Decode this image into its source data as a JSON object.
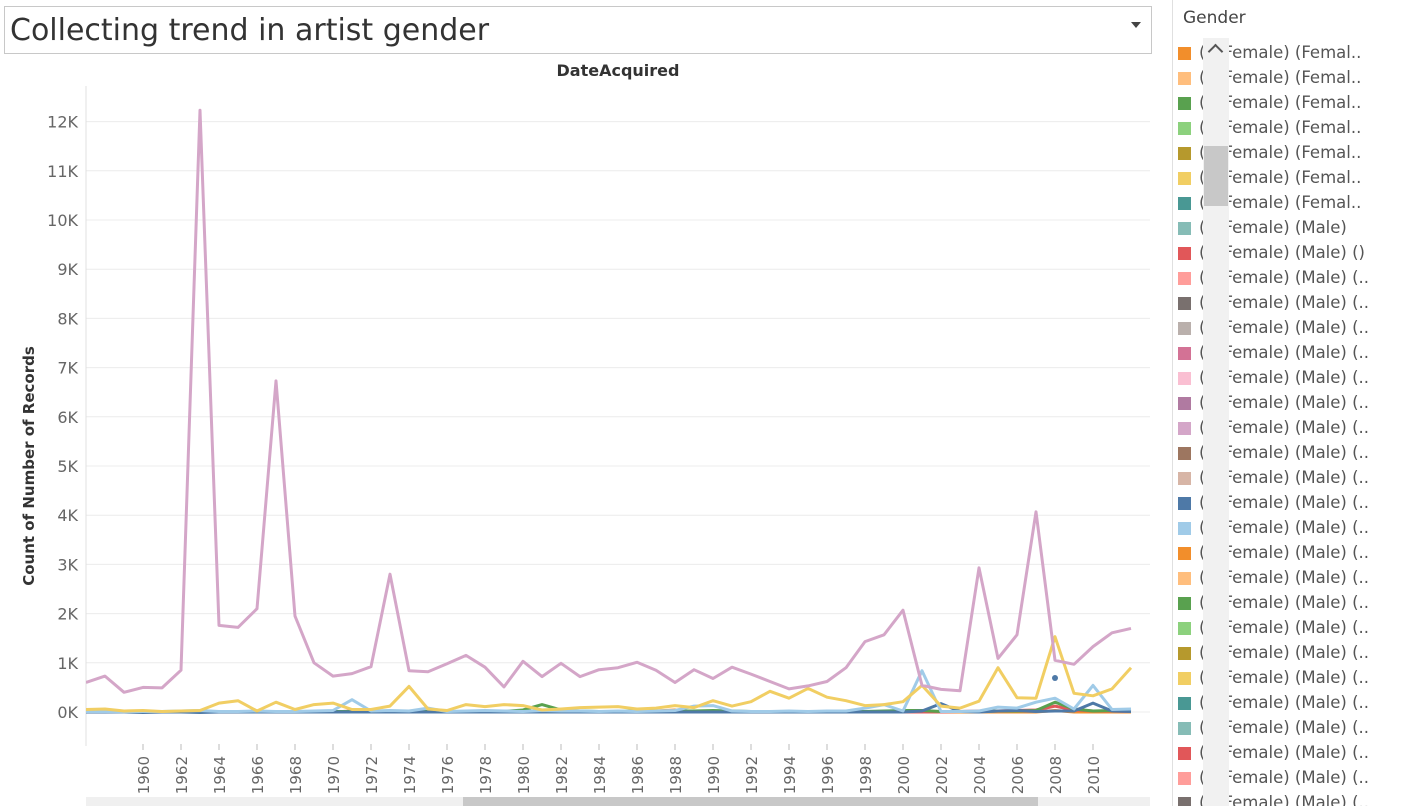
{
  "header": {
    "title": "Collecting trend in artist gender"
  },
  "legend": {
    "title": "Gender",
    "items": [
      {
        "label": "() (Female) (Femal..",
        "color": "#f28e2b"
      },
      {
        "label": "() (Female) (Femal..",
        "color": "#ffbe7d"
      },
      {
        "label": "() (Female) (Femal..",
        "color": "#59a14f"
      },
      {
        "label": "() (Female) (Femal..",
        "color": "#8cd17d"
      },
      {
        "label": "() (Female) (Femal..",
        "color": "#b6992d"
      },
      {
        "label": "() (Female) (Femal..",
        "color": "#f1ce63"
      },
      {
        "label": "() (Female) (Femal..",
        "color": "#499894"
      },
      {
        "label": "() (Female) (Male)",
        "color": "#86bcb6"
      },
      {
        "label": "() (Female) (Male) ()",
        "color": "#e15759"
      },
      {
        "label": "() (Female) (Male) (..",
        "color": "#ff9d9a"
      },
      {
        "label": "() (Female) (Male) (..",
        "color": "#79706e"
      },
      {
        "label": "() (Female) (Male) (..",
        "color": "#bab0ac"
      },
      {
        "label": "() (Female) (Male) (..",
        "color": "#d37295"
      },
      {
        "label": "() (Female) (Male) (..",
        "color": "#fabfd2"
      },
      {
        "label": "() (Female) (Male) (..",
        "color": "#b07aa1"
      },
      {
        "label": "() (Female) (Male) (..",
        "color": "#d4a6c8"
      },
      {
        "label": "() (Female) (Male) (..",
        "color": "#9d7660"
      },
      {
        "label": "() (Female) (Male) (..",
        "color": "#d7b5a6"
      },
      {
        "label": "() (Female) (Male) (..",
        "color": "#4e79a7"
      },
      {
        "label": "() (Female) (Male) (..",
        "color": "#a0cbe8"
      },
      {
        "label": "() (Female) (Male) (..",
        "color": "#f28e2b"
      },
      {
        "label": "() (Female) (Male) (..",
        "color": "#ffbe7d"
      },
      {
        "label": "() (Female) (Male) (..",
        "color": "#59a14f"
      },
      {
        "label": "() (Female) (Male) (..",
        "color": "#8cd17d"
      },
      {
        "label": "() (Female) (Male) (..",
        "color": "#b6992d"
      },
      {
        "label": "() (Female) (Male) (..",
        "color": "#f1ce63"
      },
      {
        "label": "() (Female) (Male) (..",
        "color": "#499894"
      },
      {
        "label": "() (Female) (Male) (..",
        "color": "#86bcb6"
      },
      {
        "label": "() (Female) (Male) (..",
        "color": "#e15759"
      },
      {
        "label": "() (Female) (Male) (..",
        "color": "#ff9d9a"
      },
      {
        "label": "() (Female) (Male) (..",
        "color": "#79706e"
      }
    ]
  },
  "chart_data": {
    "type": "line",
    "title": "DateAcquired",
    "xlabel": "",
    "ylabel": "Count of Number of Records",
    "ylim": [
      0,
      12500
    ],
    "xlim": [
      1957,
      2013
    ],
    "x_ticks": [
      1960,
      1962,
      1964,
      1966,
      1968,
      1970,
      1972,
      1974,
      1976,
      1978,
      1980,
      1982,
      1984,
      1986,
      1988,
      1990,
      1992,
      1994,
      1996,
      1998,
      2000,
      2002,
      2004,
      2006,
      2008,
      2010
    ],
    "y_ticks": [
      {
        "value": 0,
        "label": "0K"
      },
      {
        "value": 1000,
        "label": "1K"
      },
      {
        "value": 2000,
        "label": "2K"
      },
      {
        "value": 3000,
        "label": "3K"
      },
      {
        "value": 4000,
        "label": "4K"
      },
      {
        "value": 5000,
        "label": "5K"
      },
      {
        "value": 6000,
        "label": "6K"
      },
      {
        "value": 7000,
        "label": "7K"
      },
      {
        "value": 8000,
        "label": "8K"
      },
      {
        "value": 9000,
        "label": "9K"
      },
      {
        "value": 10000,
        "label": "10K"
      },
      {
        "value": 11000,
        "label": "11K"
      },
      {
        "value": 12000,
        "label": "12K"
      }
    ],
    "grid": true,
    "legend_position": "right",
    "series": [
      {
        "color": "#d4a6c8",
        "x": [
          1957,
          1958,
          1959,
          1960,
          1961,
          1962,
          1963,
          1964,
          1965,
          1966,
          1967,
          1968,
          1969,
          1970,
          1971,
          1972,
          1973,
          1974,
          1975,
          1976,
          1977,
          1978,
          1979,
          1980,
          1981,
          1982,
          1983,
          1984,
          1985,
          1986,
          1987,
          1988,
          1989,
          1990,
          1991,
          1992,
          1993,
          1994,
          1995,
          1996,
          1997,
          1998,
          1999,
          2000,
          2001,
          2002,
          2003,
          2004,
          2005,
          2006,
          2007,
          2008,
          2009,
          2010,
          2011,
          2012
        ],
        "values": [
          600,
          730,
          400,
          500,
          490,
          850,
          12230,
          1760,
          1720,
          2100,
          6730,
          1950,
          1000,
          730,
          780,
          920,
          2800,
          840,
          820,
          980,
          1150,
          910,
          510,
          1030,
          720,
          990,
          720,
          860,
          900,
          1010,
          850,
          600,
          860,
          680,
          910,
          770,
          620,
          470,
          530,
          620,
          900,
          1430,
          1570,
          2070,
          540,
          460,
          430,
          2930,
          1090,
          1570,
          4070,
          1050,
          970,
          1330,
          1610,
          1700
        ]
      },
      {
        "color": "#f1ce63",
        "x": [
          1957,
          1958,
          1959,
          1960,
          1961,
          1962,
          1963,
          1964,
          1965,
          1966,
          1967,
          1968,
          1969,
          1970,
          1971,
          1972,
          1973,
          1974,
          1975,
          1976,
          1977,
          1978,
          1979,
          1980,
          1981,
          1982,
          1983,
          1984,
          1985,
          1986,
          1987,
          1988,
          1989,
          1990,
          1991,
          1992,
          1993,
          1994,
          1995,
          1996,
          1997,
          1998,
          1999,
          2000,
          2001,
          2002,
          2003,
          2004,
          2005,
          2006,
          2007,
          2008,
          2009,
          2010,
          2011,
          2012
        ],
        "values": [
          50,
          60,
          20,
          30,
          10,
          20,
          30,
          180,
          230,
          20,
          200,
          50,
          150,
          180,
          50,
          50,
          120,
          520,
          60,
          30,
          150,
          110,
          150,
          130,
          40,
          60,
          90,
          100,
          110,
          60,
          80,
          130,
          90,
          230,
          120,
          210,
          420,
          280,
          480,
          300,
          230,
          130,
          150,
          210,
          540,
          120,
          80,
          220,
          900,
          290,
          280,
          1530,
          380,
          330,
          470,
          900
        ]
      },
      {
        "color": "#a0cbe8",
        "x": [
          1957,
          1958,
          1959,
          1960,
          1961,
          1962,
          1963,
          1964,
          1965,
          1966,
          1967,
          1968,
          1969,
          1970,
          1971,
          1972,
          1973,
          1974,
          1975,
          1976,
          1977,
          1978,
          1979,
          1980,
          1981,
          1982,
          1983,
          1984,
          1985,
          1986,
          1987,
          1988,
          1989,
          1990,
          1991,
          1992,
          1993,
          1994,
          1995,
          1996,
          1997,
          1998,
          1999,
          2000,
          2001,
          2002,
          2003,
          2004,
          2005,
          2006,
          2007,
          2008,
          2009,
          2010,
          2011,
          2012
        ],
        "values": [
          10,
          10,
          5,
          10,
          10,
          20,
          30,
          10,
          10,
          20,
          10,
          10,
          20,
          30,
          250,
          20,
          30,
          20,
          80,
          10,
          20,
          30,
          20,
          10,
          30,
          20,
          20,
          10,
          20,
          10,
          20,
          30,
          120,
          130,
          20,
          10,
          10,
          20,
          10,
          20,
          20,
          80,
          150,
          20,
          840,
          10,
          10,
          20,
          100,
          80,
          200,
          280,
          60,
          540,
          50,
          60
        ]
      },
      {
        "color": "#4e79a7",
        "x": [
          1957,
          1958,
          1959,
          1960,
          1961,
          1962,
          1963,
          1964,
          1965,
          1966,
          1967,
          1968,
          1969,
          1970,
          1971,
          1972,
          1973,
          1974,
          1975,
          1976,
          1977,
          1978,
          1979,
          1980,
          1981,
          1982,
          1983,
          1984,
          1985,
          1986,
          1987,
          1988,
          1989,
          1990,
          1991,
          1992,
          1993,
          1994,
          1995,
          1996,
          1997,
          1998,
          1999,
          2000,
          2001,
          2002,
          2003,
          2004,
          2005,
          2006,
          2007,
          2008,
          2009,
          2010,
          2011,
          2012
        ],
        "values": [
          0,
          0,
          0,
          -10,
          0,
          0,
          -10,
          0,
          0,
          0,
          0,
          0,
          0,
          0,
          0,
          0,
          0,
          0,
          0,
          0,
          0,
          0,
          0,
          0,
          0,
          0,
          0,
          0,
          0,
          0,
          0,
          0,
          0,
          0,
          0,
          0,
          0,
          0,
          0,
          0,
          0,
          0,
          0,
          0,
          20,
          170,
          10,
          0,
          20,
          30,
          10,
          20,
          20,
          180,
          20,
          10
        ]
      },
      {
        "color": "#59a14f",
        "x": [
          1957,
          1958,
          1959,
          1960,
          1961,
          1962,
          1963,
          1964,
          1965,
          1966,
          1967,
          1968,
          1969,
          1970,
          1971,
          1972,
          1973,
          1974,
          1975,
          1976,
          1977,
          1978,
          1979,
          1980,
          1981,
          1982,
          1983,
          1984,
          1985,
          1986,
          1987,
          1988,
          1989,
          1990,
          1991,
          1992,
          1993,
          1994,
          1995,
          1996,
          1997,
          1998,
          1999,
          2000,
          2001,
          2002,
          2003,
          2004,
          2005,
          2006,
          2007,
          2008,
          2009,
          2010,
          2011,
          2012
        ],
        "values": [
          20,
          10,
          10,
          10,
          10,
          10,
          10,
          10,
          10,
          10,
          10,
          10,
          10,
          10,
          10,
          10,
          10,
          10,
          10,
          10,
          10,
          10,
          10,
          40,
          150,
          40,
          20,
          10,
          10,
          20,
          20,
          20,
          20,
          30,
          20,
          10,
          10,
          10,
          10,
          10,
          10,
          10,
          20,
          30,
          30,
          10,
          10,
          10,
          20,
          20,
          30,
          200,
          60,
          20,
          30,
          20
        ]
      },
      {
        "color": "#e15759",
        "x": [
          1957,
          1958,
          1959,
          1960,
          1961,
          1962,
          1963,
          1964,
          1965,
          1966,
          1967,
          1968,
          1969,
          1970,
          1971,
          1972,
          1973,
          1974,
          1975,
          1976,
          1977,
          1978,
          1979,
          1980,
          1981,
          1982,
          1983,
          1984,
          1985,
          1986,
          1987,
          1988,
          1989,
          1990,
          1991,
          1992,
          1993,
          1994,
          1995,
          1996,
          1997,
          1998,
          1999,
          2000,
          2001,
          2002,
          2003,
          2004,
          2005,
          2006,
          2007,
          2008,
          2009,
          2010,
          2011,
          2012
        ],
        "values": [
          0,
          0,
          0,
          0,
          0,
          0,
          0,
          0,
          0,
          0,
          0,
          0,
          0,
          0,
          20,
          10,
          0,
          0,
          0,
          0,
          0,
          0,
          0,
          0,
          0,
          0,
          0,
          0,
          0,
          0,
          0,
          0,
          0,
          0,
          0,
          0,
          0,
          0,
          0,
          0,
          0,
          0,
          0,
          0,
          0,
          0,
          10,
          20,
          20,
          30,
          40,
          120,
          40,
          20,
          20,
          10
        ]
      },
      {
        "color": "#f28e2b",
        "x": [
          1957,
          1958,
          1959,
          1960,
          1961,
          1962,
          1963,
          1964,
          1965,
          1966,
          1967,
          1968,
          1969,
          1970,
          1971,
          1972,
          1973,
          1974,
          1975,
          1976,
          1977,
          1978,
          1979,
          1980,
          1981,
          1982,
          1983,
          1984,
          1985,
          1986,
          1987,
          1988,
          1989,
          1990,
          1991,
          1992,
          1993,
          1994,
          1995,
          1996,
          1997,
          1998,
          1999,
          2000,
          2001,
          2002,
          2003,
          2004,
          2005,
          2006,
          2007,
          2008,
          2009,
          2010,
          2011,
          2012
        ],
        "values": [
          0,
          0,
          0,
          0,
          0,
          0,
          0,
          0,
          0,
          0,
          0,
          0,
          0,
          0,
          0,
          0,
          0,
          0,
          0,
          0,
          0,
          0,
          0,
          0,
          0,
          0,
          0,
          0,
          0,
          0,
          20,
          40,
          0,
          0,
          0,
          0,
          0,
          0,
          0,
          0,
          0,
          0,
          0,
          0,
          0,
          0,
          0,
          0,
          0,
          0,
          0,
          30,
          0,
          0,
          0,
          0
        ]
      }
    ],
    "points": [
      {
        "x": 2008,
        "y": 690,
        "color": "#4e79a7"
      }
    ]
  }
}
